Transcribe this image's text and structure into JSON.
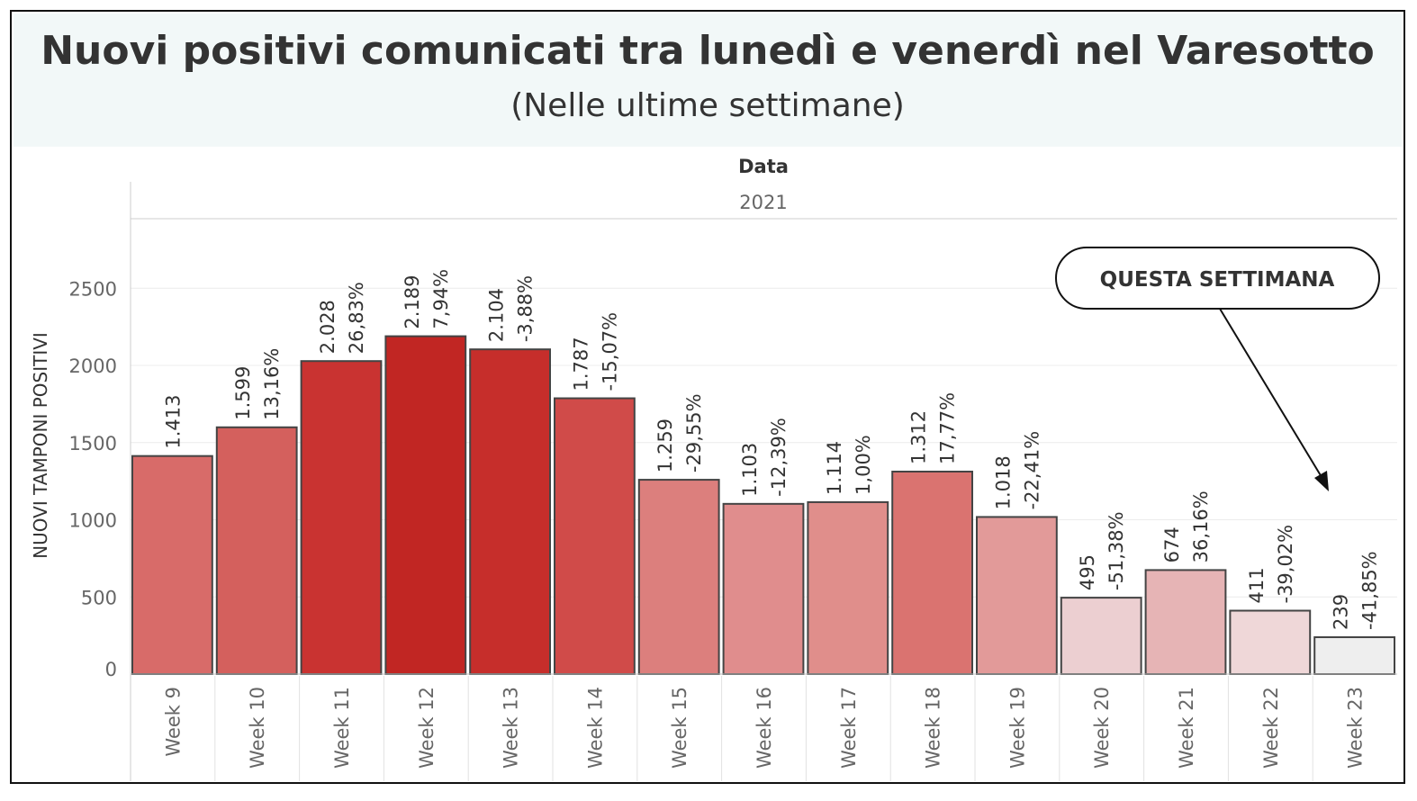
{
  "header": {
    "title": "Nuovi positivi comunicati tra lunedì e venerdì nel Varesotto",
    "subtitle": "(Nelle ultime settimane)"
  },
  "chart_data": {
    "type": "bar",
    "column_header": "Data",
    "column_value": "2021",
    "ylabel": "NUOVI TAMPONI POSITIVI",
    "ylim": [
      0,
      2900
    ],
    "yticks": [
      0,
      500,
      1000,
      1500,
      2000,
      2500
    ],
    "grid": true,
    "categories": [
      "Week 9",
      "Week 10",
      "Week 11",
      "Week 12",
      "Week 13",
      "Week 14",
      "Week 15",
      "Week 16",
      "Week 17",
      "Week 18",
      "Week 19",
      "Week 20",
      "Week 21",
      "Week 22",
      "Week 23"
    ],
    "values": [
      1413,
      1599,
      2028,
      2189,
      2104,
      1787,
      1259,
      1103,
      1114,
      1312,
      1018,
      495,
      674,
      411,
      239
    ],
    "value_labels": [
      "1.413",
      "1.599",
      "2.028",
      "2.189",
      "2.104",
      "1.787",
      "1.259",
      "1.103",
      "1.114",
      "1.312",
      "1.018",
      "495",
      "674",
      "411",
      "239"
    ],
    "change_labels": [
      "",
      "13,16%",
      "26,83%",
      "7,94%",
      "-3,88%",
      "-15,07%",
      "-29,55%",
      "-12,39%",
      "1,00%",
      "17,77%",
      "-22,41%",
      "-51,38%",
      "36,16%",
      "-39,02%",
      "-41,85%"
    ],
    "bar_colors": [
      "#d86b69",
      "#d4605d",
      "#c93331",
      "#c12623",
      "#c62e2b",
      "#d04b49",
      "#dc7f7d",
      "#e08d8d",
      "#e08e8b",
      "#da7370",
      "#e29a99",
      "#eccfd1",
      "#e6b4b5",
      "#efd7d8",
      "#eeeeee"
    ],
    "annotation": "QUESTA SETTIMANA"
  }
}
